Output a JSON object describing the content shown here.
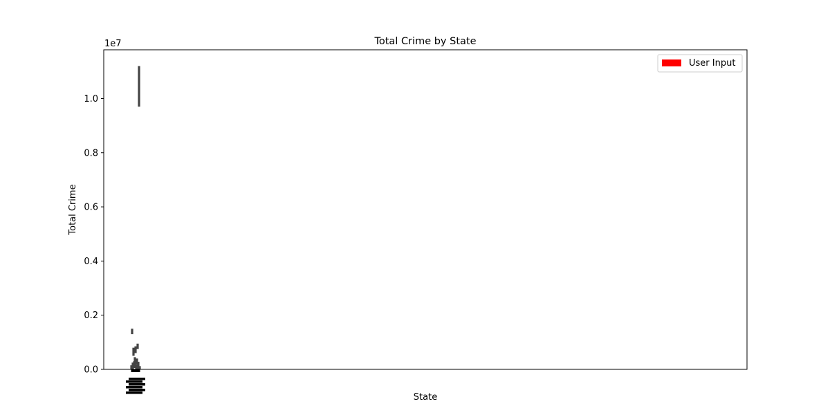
{
  "chart_data": {
    "type": "bar",
    "title": "Total Crime by State",
    "xlabel": "State",
    "ylabel": "Total Crime",
    "y_offset_text": "1e7",
    "y_multiplier": 10000000,
    "ylim": [
      0,
      11800000
    ],
    "yticks": [
      0,
      2000000,
      4000000,
      6000000,
      8000000,
      10000000
    ],
    "ytick_labels": [
      "0.0",
      "0.2",
      "0.4",
      "0.6",
      "0.8",
      "1.0"
    ],
    "legend": {
      "placement": "top-right",
      "entries": [
        {
          "label": "User Input",
          "color": "#ff0000"
        }
      ]
    },
    "bar_color": "#444444",
    "bars": [
      {
        "x": 0,
        "bottom": 0,
        "top": 150000
      },
      {
        "x": 1,
        "bottom": 1300000,
        "top": 1500000
      },
      {
        "x": 2,
        "bottom": 0,
        "top": 250000
      },
      {
        "x": 3,
        "bottom": 500000,
        "top": 800000
      },
      {
        "x": 4,
        "bottom": 50000,
        "top": 300000
      },
      {
        "x": 5,
        "bottom": 100000,
        "top": 450000
      },
      {
        "x": 6,
        "bottom": 600000,
        "top": 850000
      },
      {
        "x": 7,
        "bottom": 0,
        "top": 200000
      },
      {
        "x": 8,
        "bottom": 200000,
        "top": 400000
      },
      {
        "x": 9,
        "bottom": 750000,
        "top": 950000
      },
      {
        "x": 10,
        "bottom": 0,
        "top": 280000
      },
      {
        "x": 11,
        "bottom": 9700000,
        "top": 11200000
      },
      {
        "x": 12,
        "bottom": 0,
        "top": 120000
      }
    ],
    "x_range": [
      0,
      12
    ],
    "x_tick_label_rows": 6
  },
  "colors": {
    "axes": "#000000",
    "background": "#ffffff"
  }
}
